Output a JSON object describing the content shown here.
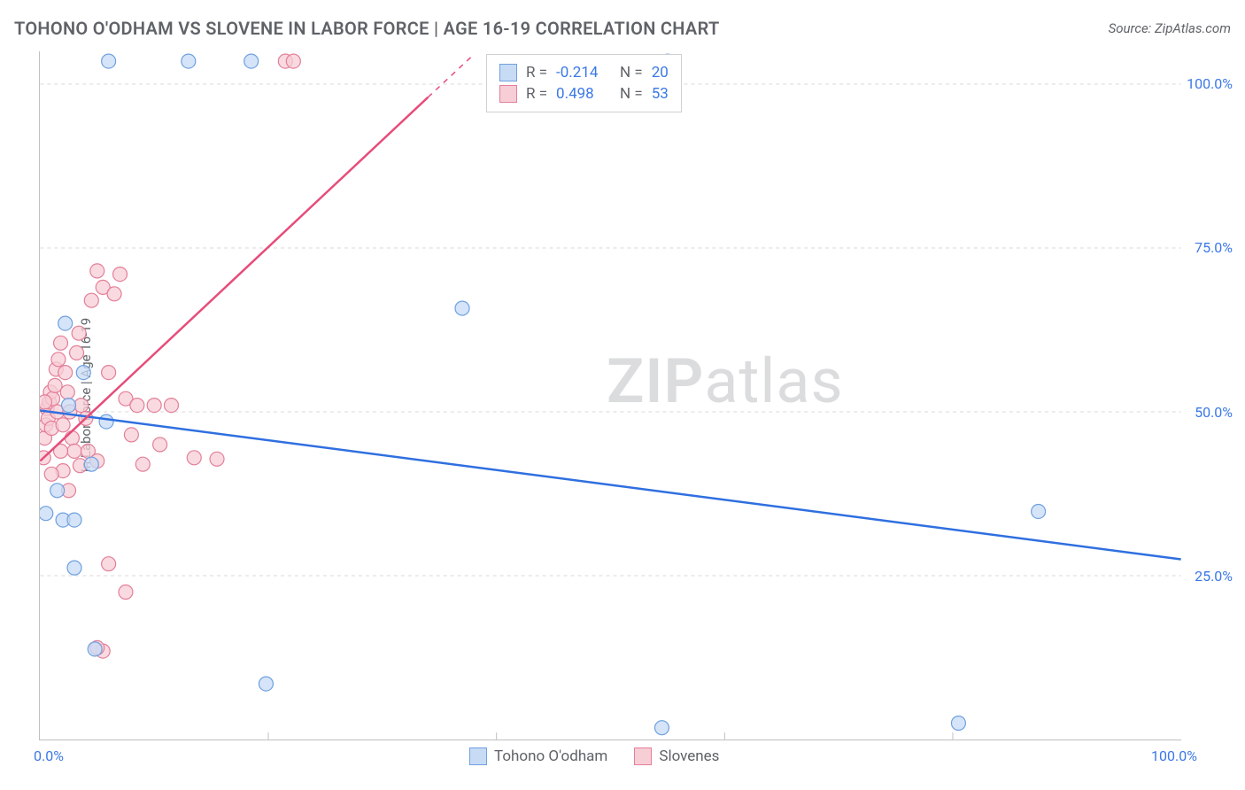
{
  "title": "TOHONO O'ODHAM VS SLOVENE IN LABOR FORCE | AGE 16-19 CORRELATION CHART",
  "source": "Source: ZipAtlas.com",
  "y_axis_label": "In Labor Force | Age 16-19",
  "chart": {
    "type": "scatter",
    "xlim": [
      0,
      100
    ],
    "ylim": [
      0,
      105
    ],
    "x_ticks": [
      0,
      100
    ],
    "x_tick_labels": [
      "0.0%",
      "100.0%"
    ],
    "y_ticks": [
      25,
      50,
      75,
      100
    ],
    "y_tick_labels": [
      "25.0%",
      "50.0%",
      "75.0%",
      "100.0%"
    ],
    "minor_x_ticks": [
      20,
      40,
      60,
      80
    ],
    "grid_color": "#d8d8d8",
    "axis_color": "#c0c0c0",
    "background_color": "#ffffff",
    "series": [
      {
        "name": "Tohono O'odham",
        "marker_fill": "#c7dbf5",
        "marker_stroke": "#6fa0e0",
        "marker_opacity": 0.75,
        "marker_radius": 8,
        "line_color": "#2f6fe0",
        "line_width": 2.5,
        "regression": {
          "x1": 0,
          "y1": 50.2,
          "x2": 100,
          "y2": 27.5
        },
        "points": [
          [
            0.5,
            34.5
          ],
          [
            1.5,
            38
          ],
          [
            2,
            33.5
          ],
          [
            3,
            33.5
          ],
          [
            2.2,
            63.5
          ],
          [
            2.5,
            51
          ],
          [
            3.8,
            56
          ],
          [
            5.8,
            48.5
          ],
          [
            3,
            26.2
          ],
          [
            4.8,
            13.8
          ],
          [
            6,
            103.5
          ],
          [
            13,
            103.5
          ],
          [
            18.5,
            103.5
          ],
          [
            37,
            65.8
          ],
          [
            19.8,
            8.5
          ],
          [
            54.5,
            1.8
          ],
          [
            80.5,
            2.5
          ],
          [
            87.5,
            34.8
          ],
          [
            4.5,
            42
          ],
          [
            55,
            103.5
          ]
        ]
      },
      {
        "name": "Slovenes",
        "marker_fill": "#f7cdd6",
        "marker_stroke": "#e37f99",
        "marker_opacity": 0.75,
        "marker_radius": 8,
        "line_color": "#e54d7a",
        "line_width": 2.5,
        "regression": {
          "x1": 0,
          "y1": 42.5,
          "x2": 34,
          "y2": 98
        },
        "regression_dash": {
          "x1": 34,
          "y1": 98,
          "x2": 38,
          "y2": 104.5
        },
        "points": [
          [
            0.4,
            46
          ],
          [
            0.5,
            48
          ],
          [
            0.6,
            50.5
          ],
          [
            0.7,
            49
          ],
          [
            0.8,
            51.5
          ],
          [
            0.9,
            53
          ],
          [
            1.0,
            47.5
          ],
          [
            1.1,
            52
          ],
          [
            1.3,
            54
          ],
          [
            1.4,
            56.5
          ],
          [
            1.5,
            50
          ],
          [
            1.6,
            58
          ],
          [
            1.8,
            60.5
          ],
          [
            2.0,
            48
          ],
          [
            2.2,
            56
          ],
          [
            2.4,
            53
          ],
          [
            2.6,
            50
          ],
          [
            2.8,
            46
          ],
          [
            3.0,
            44
          ],
          [
            3.2,
            59
          ],
          [
            3.4,
            62
          ],
          [
            3.6,
            51
          ],
          [
            4.0,
            49
          ],
          [
            4.5,
            67
          ],
          [
            5.0,
            71.5
          ],
          [
            5.5,
            69
          ],
          [
            6.0,
            56
          ],
          [
            6.5,
            68
          ],
          [
            7.0,
            71
          ],
          [
            7.5,
            52
          ],
          [
            8.0,
            46.5
          ],
          [
            8.5,
            51
          ],
          [
            9.0,
            42
          ],
          [
            10.0,
            51
          ],
          [
            2.0,
            41
          ],
          [
            3.5,
            41.8
          ],
          [
            4.2,
            44
          ],
          [
            5.0,
            42.5
          ],
          [
            2.5,
            38
          ],
          [
            1.0,
            40.5
          ],
          [
            1.8,
            44
          ],
          [
            5.5,
            13.5
          ],
          [
            5.0,
            14
          ],
          [
            7.5,
            22.5
          ],
          [
            6.0,
            26.8
          ],
          [
            10.5,
            45
          ],
          [
            13.5,
            43
          ],
          [
            15.5,
            42.8
          ],
          [
            21.5,
            103.5
          ],
          [
            22.2,
            103.5
          ],
          [
            11.5,
            51
          ],
          [
            0.3,
            43
          ],
          [
            0.4,
            51.5
          ]
        ]
      }
    ]
  },
  "legend_top": {
    "rows": [
      {
        "swatch_fill": "#c7dbf5",
        "swatch_stroke": "#6fa0e0",
        "r_label": "R =",
        "r_value": "-0.214",
        "n_label": "N =",
        "n_value": "20"
      },
      {
        "swatch_fill": "#f7cdd6",
        "swatch_stroke": "#e37f99",
        "r_label": "R =",
        "r_value": "0.498",
        "n_label": "N =",
        "n_value": "53"
      }
    ]
  },
  "legend_bottom": {
    "items": [
      {
        "swatch_fill": "#c7dbf5",
        "swatch_stroke": "#6fa0e0",
        "label": "Tohono O'odham"
      },
      {
        "swatch_fill": "#f7cdd6",
        "swatch_stroke": "#e37f99",
        "label": "Slovenes"
      }
    ]
  },
  "watermark": {
    "zip": "ZIP",
    "atlas": "atlas"
  }
}
